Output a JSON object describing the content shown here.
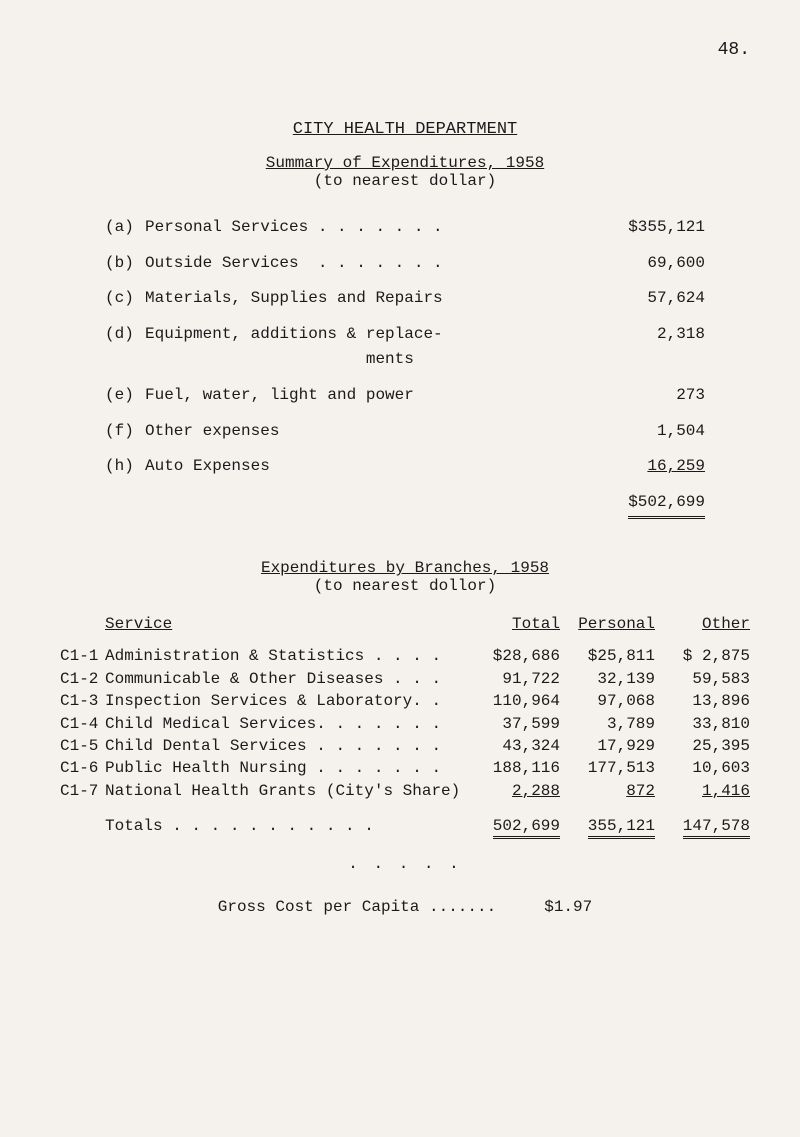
{
  "page_number": "48.",
  "main_title": "CITY HEALTH DEPARTMENT",
  "subtitle_underlined": "Summary of Expenditures, 1958",
  "subtitle_paren": "(to nearest dollar)",
  "summary": [
    {
      "label": "(a)",
      "text": "Personal Services . . . . . . .",
      "value": "$355,121"
    },
    {
      "label": "(b)",
      "text": "Outside Services  . . . . . . .",
      "value": "69,600"
    },
    {
      "label": "(c)",
      "text": "Materials, Supplies and Repairs",
      "value": "57,624"
    },
    {
      "label": "(d)",
      "text": "Equipment, additions & replace-\n                       ments",
      "value": "2,318"
    },
    {
      "label": "(e)",
      "text": "Fuel, water, light and power",
      "value": "273"
    },
    {
      "label": "(f)",
      "text": "Other expenses",
      "value": "1,504"
    },
    {
      "label": "(h)",
      "text": "Auto Expenses",
      "value": "16,259",
      "underline": true
    }
  ],
  "summary_total": "$502,699",
  "section2_underlined": "Expenditures by Branches, 1958",
  "section2_paren": "(to nearest dollor)",
  "branches_headers": {
    "service": "Service",
    "total": "Total",
    "personal": "Personal",
    "other": "Other"
  },
  "branches": [
    {
      "code": "C1-1",
      "service": "Administration & Statistics . . . .",
      "total": "$28,686",
      "personal": "$25,811",
      "other": "$ 2,875"
    },
    {
      "code": "C1-2",
      "service": "Communicable & Other Diseases . . .",
      "total": "91,722",
      "personal": "32,139",
      "other": "59,583"
    },
    {
      "code": "C1-3",
      "service": "Inspection Services & Laboratory. .",
      "total": "110,964",
      "personal": "97,068",
      "other": "13,896"
    },
    {
      "code": "C1-4",
      "service": "Child Medical Services. . . . . . .",
      "total": "37,599",
      "personal": "3,789",
      "other": "33,810"
    },
    {
      "code": "C1-5",
      "service": "Child Dental Services . . . . . . .",
      "total": "43,324",
      "personal": "17,929",
      "other": "25,395"
    },
    {
      "code": "C1-6",
      "service": "Public Health Nursing . . . . . . .",
      "total": "188,116",
      "personal": "177,513",
      "other": "10,603"
    },
    {
      "code": "C1-7",
      "service": "National Health Grants (City's Share)",
      "total": "2,288",
      "personal": "872",
      "other": "1,416"
    }
  ],
  "totals_label": "Totals . . . . . . . . . . .",
  "totals": {
    "total": "502,699",
    "personal": "355,121",
    "other": "147,578"
  },
  "dots": ". . . . .",
  "gross_label": "Gross Cost per Capita .......",
  "gross_value": "$1.97"
}
